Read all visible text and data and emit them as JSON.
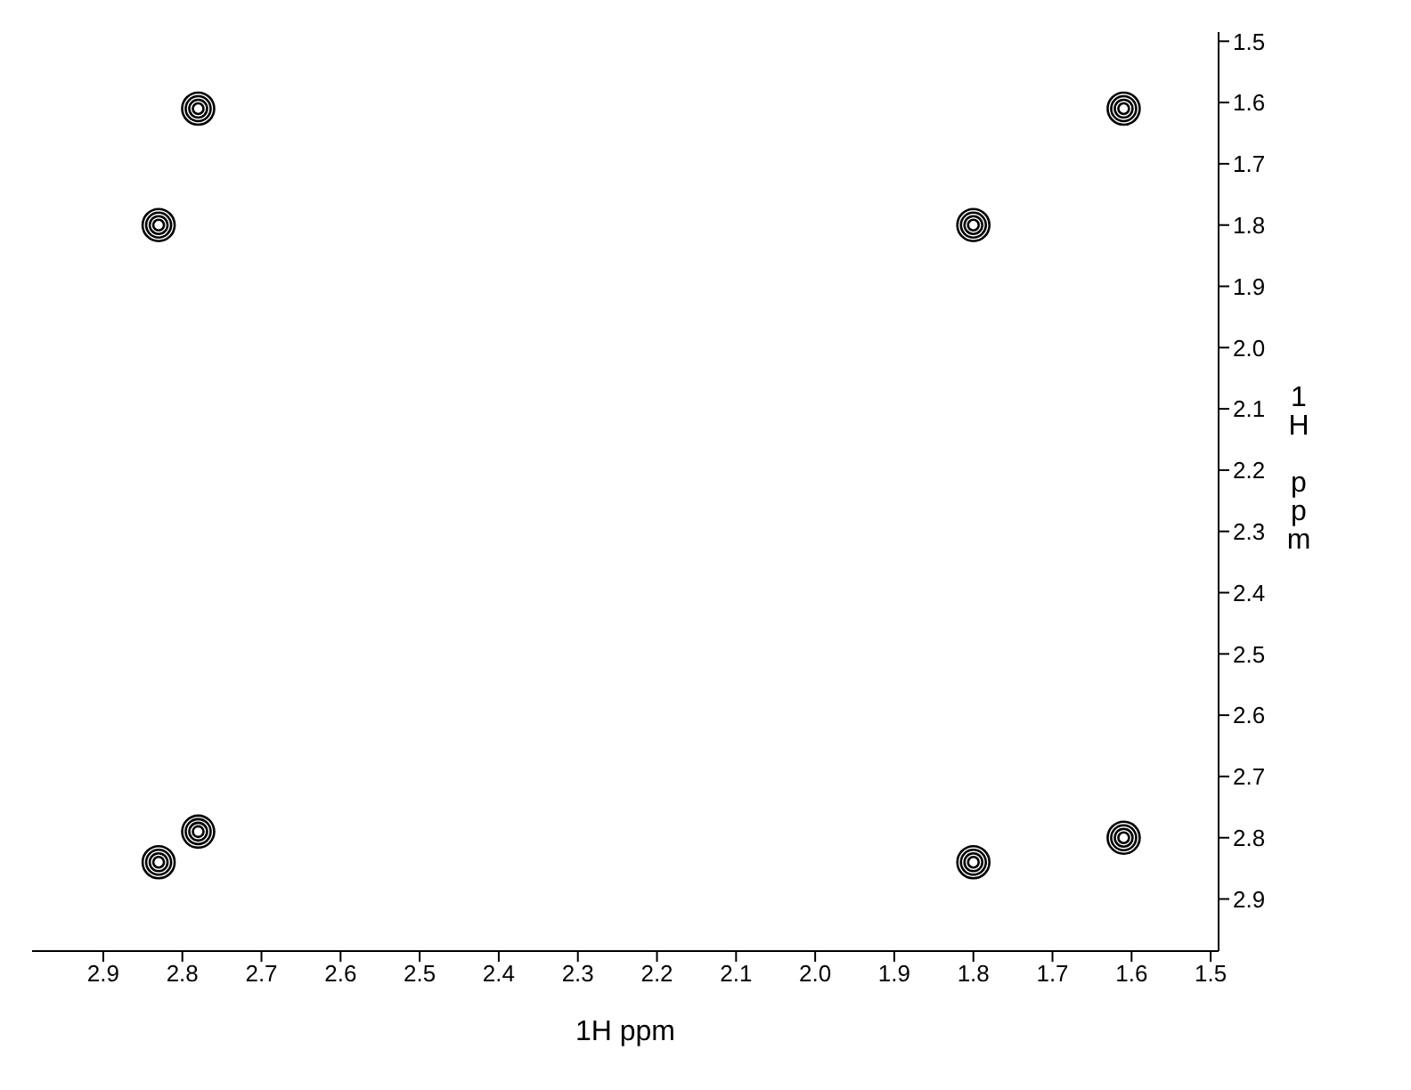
{
  "chart_data": {
    "type": "scatter",
    "xlabel": "1H ppm",
    "ylabel": "1H ppm",
    "x": [
      2.78,
      1.61,
      2.83,
      1.8,
      2.83,
      2.78,
      1.8,
      1.61
    ],
    "series": [
      {
        "color": "#000000",
        "values": [
          1.61,
          1.61,
          1.8,
          1.8,
          2.84,
          2.79,
          2.84,
          2.8
        ]
      }
    ],
    "xlim": [
      2.99,
      1.49
    ],
    "ylim": [
      2.985,
      1.485
    ],
    "xticks": [
      2.9,
      2.8,
      2.7,
      2.6,
      2.5,
      2.4,
      2.3,
      2.2,
      2.1,
      {
        "value": 2,
        "label": "2.0"
      },
      1.9,
      1.8,
      1.7,
      1.6,
      1.5
    ],
    "yticks": [
      1.5,
      1.6,
      1.7,
      1.8,
      1.9,
      {
        "value": 2,
        "label": "2.0"
      },
      2.1,
      2.2,
      2.3,
      2.4,
      2.5,
      2.6,
      2.7,
      2.8,
      2.9
    ],
    "grid": false,
    "legend": false,
    "marker": "circle"
  }
}
